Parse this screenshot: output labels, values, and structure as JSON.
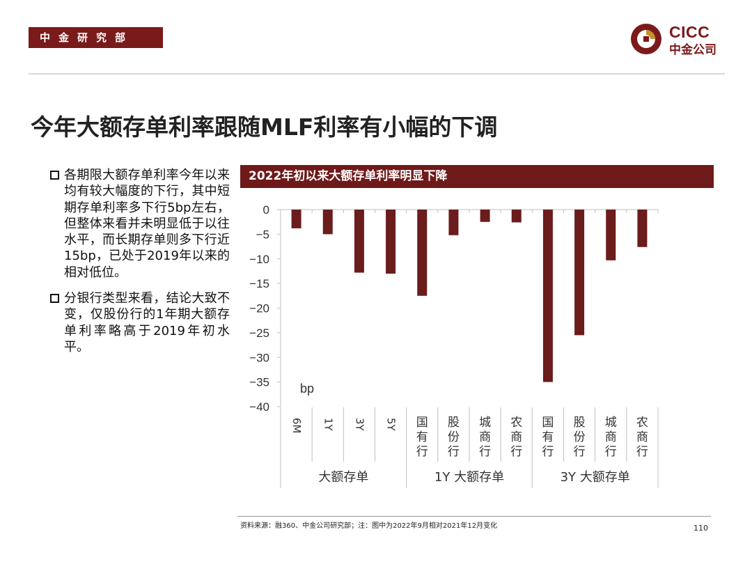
{
  "header": {
    "brand_label": "中金研究部",
    "logo_text": "CICC",
    "logo_subtext": "中金公司",
    "brand_color": "#7a1a1a"
  },
  "page_title": "今年大额存单利率跟随MLF利率有小幅的下调",
  "bullets": [
    "各期限大额存单利率今年以来均有较大幅度的下行，其中短期存单利率多下行5bp左右，但整体来看并未明显低于以往水平，而长期存单则多下行近15bp，已处于2019年以来的相对低位。",
    "分银行类型来看，结论大致不变，仅股份行的1年期大额存单利率略高于2019年初水平。"
  ],
  "chart_header": "2022年初以来大额存单利率明显下降",
  "chart_data": {
    "type": "bar",
    "title": "2022年初以来大额存单利率明显下降",
    "ylabel": "bp",
    "ylim": [
      -40,
      0
    ],
    "yticks": [
      0,
      -5,
      -10,
      -15,
      -20,
      -25,
      -30,
      -35,
      -40
    ],
    "grid": false,
    "categories": [
      "6M",
      "1Y",
      "3Y",
      "5Y",
      "国有行",
      "股份行",
      "城商行",
      "农商行",
      "国有行",
      "股份行",
      "城商行",
      "农商行"
    ],
    "groups": [
      {
        "label": "大额存单",
        "count": 4
      },
      {
        "label": "1Y 大额存单",
        "count": 4
      },
      {
        "label": "3Y 大额存单",
        "count": 4
      }
    ],
    "values": [
      -3.8,
      -5.0,
      -12.8,
      -13.0,
      -17.5,
      -5.2,
      -2.5,
      -2.6,
      -35.0,
      -25.5,
      -10.3,
      -7.6
    ],
    "bar_color": "#6b1c1c"
  },
  "footer": {
    "source": "资料来源：融360、中金公司研究部；注：图中为2022年9月相对2021年12月变化",
    "page_number": "110"
  }
}
